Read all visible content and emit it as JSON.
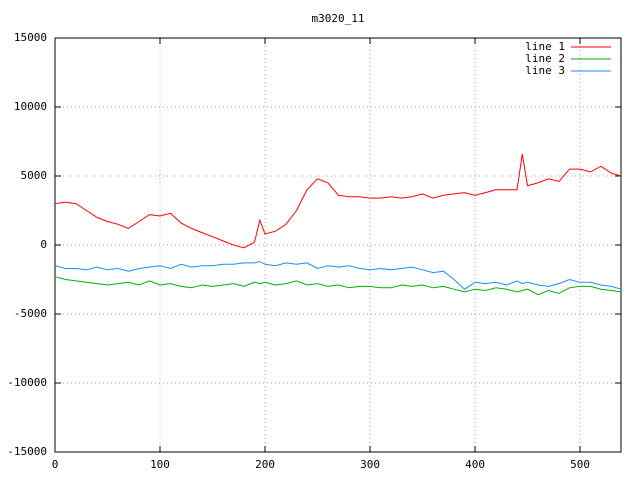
{
  "chart_data": {
    "type": "line",
    "title": "m3020_11",
    "x": [
      0,
      10,
      20,
      30,
      40,
      50,
      60,
      70,
      80,
      90,
      100,
      110,
      120,
      130,
      140,
      150,
      160,
      170,
      180,
      190,
      195,
      200,
      210,
      220,
      230,
      240,
      250,
      260,
      270,
      280,
      290,
      300,
      310,
      320,
      330,
      340,
      350,
      360,
      370,
      380,
      390,
      400,
      410,
      420,
      430,
      440,
      445,
      450,
      460,
      470,
      480,
      490,
      500,
      510,
      520,
      530,
      539
    ],
    "series": [
      {
        "name": "line 1",
        "color": "#ff0000",
        "values": [
          3000,
          3100,
          3000,
          2500,
          2000,
          1700,
          1500,
          1200,
          1700,
          2200,
          2100,
          2300,
          1600,
          1200,
          900,
          600,
          300,
          0,
          -200,
          200,
          1800,
          800,
          1000,
          1500,
          2500,
          4000,
          4800,
          4500,
          3600,
          3500,
          3500,
          3400,
          3400,
          3500,
          3400,
          3500,
          3700,
          3400,
          3600,
          3700,
          3800,
          3600,
          3800,
          4000,
          4000,
          4000,
          6600,
          4300,
          4500,
          4800,
          4600,
          5500,
          5500,
          5300,
          5700,
          5200,
          5000
        ]
      },
      {
        "name": "line 2",
        "color": "#00b000",
        "values": [
          -2300,
          -2500,
          -2600,
          -2700,
          -2800,
          -2900,
          -2800,
          -2700,
          -2900,
          -2600,
          -2900,
          -2800,
          -3000,
          -3100,
          -2900,
          -3000,
          -2900,
          -2800,
          -3000,
          -2700,
          -2800,
          -2700,
          -2900,
          -2800,
          -2600,
          -2900,
          -2800,
          -3000,
          -2900,
          -3100,
          -3000,
          -3000,
          -3100,
          -3100,
          -2900,
          -3000,
          -2900,
          -3100,
          -3000,
          -3200,
          -3400,
          -3200,
          -3300,
          -3100,
          -3200,
          -3400,
          -3300,
          -3200,
          -3600,
          -3300,
          -3500,
          -3100,
          -3000,
          -3000,
          -3200,
          -3300,
          -3400
        ]
      },
      {
        "name": "line 3",
        "color": "#1a8cff",
        "values": [
          -1500,
          -1700,
          -1700,
          -1800,
          -1600,
          -1800,
          -1700,
          -1900,
          -1700,
          -1600,
          -1500,
          -1700,
          -1400,
          -1600,
          -1500,
          -1500,
          -1400,
          -1400,
          -1300,
          -1300,
          -1200,
          -1400,
          -1500,
          -1300,
          -1400,
          -1300,
          -1700,
          -1500,
          -1600,
          -1500,
          -1700,
          -1800,
          -1700,
          -1800,
          -1700,
          -1600,
          -1800,
          -2000,
          -1900,
          -2500,
          -3200,
          -2700,
          -2800,
          -2700,
          -2900,
          -2600,
          -2800,
          -2700,
          -2900,
          -3000,
          -2800,
          -2500,
          -2700,
          -2700,
          -2900,
          -3000,
          -3200
        ]
      }
    ],
    "xlim": [
      0,
      539
    ],
    "ylim": [
      -15000,
      15000
    ],
    "xticks": [
      0,
      100,
      200,
      300,
      400,
      500
    ],
    "yticks": [
      -15000,
      -10000,
      -5000,
      0,
      5000,
      10000,
      15000
    ],
    "grid": true,
    "legend": "upper right"
  }
}
